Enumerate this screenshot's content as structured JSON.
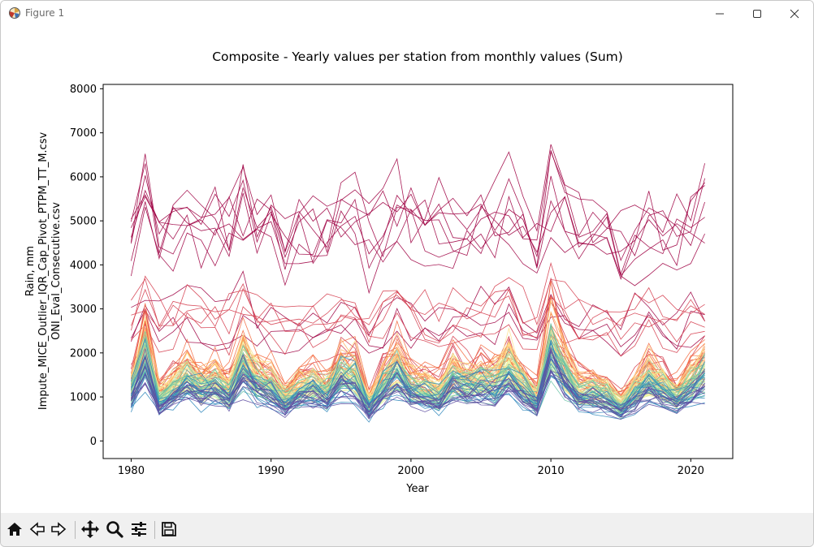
{
  "window": {
    "title": "Figure 1",
    "controls": [
      "minimize",
      "maximize",
      "close"
    ]
  },
  "toolbar": {
    "buttons": [
      {
        "name": "home",
        "icon": "home-icon"
      },
      {
        "name": "back",
        "icon": "back-arrow-icon"
      },
      {
        "name": "forward",
        "icon": "forward-arrow-icon"
      },
      {
        "name": "pan",
        "icon": "move-icon"
      },
      {
        "name": "zoom",
        "icon": "zoom-icon"
      },
      {
        "name": "configure",
        "icon": "sliders-icon"
      },
      {
        "name": "save",
        "icon": "save-icon"
      }
    ]
  },
  "chart_data": {
    "type": "line",
    "title": "Composite - Yearly values per station from monthly values (Sum)",
    "xlabel": "Year",
    "ylabel_lines": [
      "Rain, mm",
      "Impute_MICE_Outlier_IQR_Cap_Pivot_PTPM_TT_M.csv",
      "ONI_Eval_Consecutive.csv"
    ],
    "xlim": [
      1978,
      2023
    ],
    "ylim": [
      -400,
      8100
    ],
    "xticks": [
      1980,
      1990,
      2000,
      2010,
      2020
    ],
    "yticks": [
      0,
      1000,
      2000,
      3000,
      4000,
      5000,
      6000,
      7000,
      8000
    ],
    "grid": false,
    "colormap": "Spectral",
    "colormap_colors": [
      "#9e0142",
      "#d53e4f",
      "#f46d43",
      "#fdae61",
      "#fee08b",
      "#e6f598",
      "#abdda4",
      "#66c2a5",
      "#3288bd",
      "#5e4fa2"
    ],
    "x_range": [
      1980,
      2021
    ],
    "n_series": 110,
    "reference_year_means": {
      "years": [
        1980,
        1981,
        1982,
        1983,
        1984,
        1985,
        1986,
        1987,
        1988,
        1989,
        1990,
        1991,
        1992,
        1993,
        1994,
        1995,
        1996,
        1997,
        1998,
        1999,
        2000,
        2001,
        2002,
        2003,
        2004,
        2005,
        2006,
        2007,
        2008,
        2009,
        2010,
        2011,
        2012,
        2013,
        2014,
        2015,
        2016,
        2017,
        2018,
        2019,
        2020,
        2021
      ],
      "relative_level": [
        0.85,
        1.5,
        0.72,
        0.9,
        1.1,
        0.95,
        1.0,
        0.85,
        1.35,
        1.05,
        0.95,
        0.7,
        0.9,
        0.95,
        0.85,
        1.2,
        1.15,
        0.6,
        1.0,
        1.3,
        0.95,
        0.9,
        0.8,
        1.1,
        1.0,
        1.05,
        1.0,
        1.3,
        0.95,
        0.7,
        1.7,
        1.2,
        0.85,
        0.85,
        0.8,
        0.6,
        0.85,
        1.1,
        0.95,
        0.75,
        1.0,
        1.2
      ]
    }
  }
}
